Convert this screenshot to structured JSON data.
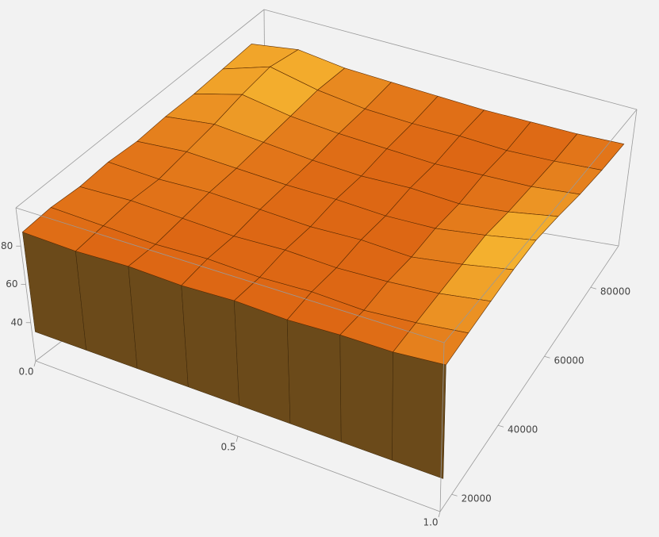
{
  "chart_data": {
    "type": "surface3d",
    "x": [
      0,
      0.125,
      0.25,
      0.375,
      0.5,
      0.625,
      0.75,
      0.875,
      1
    ],
    "y": [
      16000,
      25000,
      34000,
      43000,
      52000,
      61000,
      70000,
      79000,
      88000
    ],
    "z": [
      [
        86,
        85,
        86,
        85,
        86,
        85,
        86,
        86,
        88
      ],
      [
        87,
        86,
        85,
        86,
        85,
        86,
        85,
        87,
        90
      ],
      [
        86,
        87,
        86,
        85,
        86,
        85,
        86,
        88,
        92
      ],
      [
        87,
        86,
        87,
        86,
        85,
        86,
        85,
        89,
        94
      ],
      [
        86,
        88,
        87,
        86,
        86,
        85,
        86,
        90,
        95
      ],
      [
        87,
        90,
        88,
        86,
        85,
        86,
        85,
        88,
        93
      ],
      [
        87,
        93,
        89,
        87,
        86,
        85,
        86,
        87,
        90
      ],
      [
        88,
        95,
        90,
        87,
        86,
        86,
        85,
        86,
        88
      ],
      [
        89,
        92,
        89,
        88,
        87,
        86,
        86,
        86,
        87
      ]
    ],
    "xlim": [
      0,
      1
    ],
    "ylim": [
      15000,
      92000
    ],
    "zlim": [
      20,
      100
    ],
    "xticks": [
      {
        "value": 0,
        "label": "0.0"
      },
      0.5,
      {
        "value": 1,
        "label": "1.0"
      }
    ],
    "yticks": [
      20000,
      40000,
      60000,
      80000
    ],
    "zticks": [
      40,
      60,
      80
    ],
    "colors": [
      "#d8560e",
      "#ffd23a"
    ]
  }
}
